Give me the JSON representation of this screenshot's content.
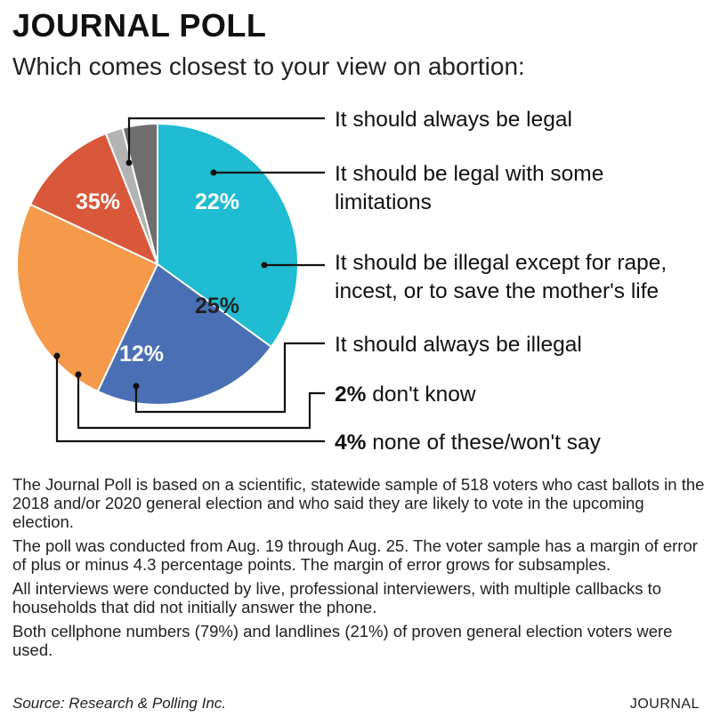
{
  "header": {
    "title": "JOURNAL POLL",
    "subtitle": "Which comes closest to your view on abortion:"
  },
  "chart_data": {
    "type": "pie",
    "title": "JOURNAL POLL",
    "subtitle": "Which comes closest to your view on abortion:",
    "slices": [
      {
        "label": "It should always be legal",
        "value": 35,
        "display": "35%",
        "color": "#1fbcd2"
      },
      {
        "label": "It should be legal with some limitations",
        "value": 22,
        "display": "22%",
        "color": "#4a6fb5"
      },
      {
        "label": "It should be illegal except for rape, incest, or to save the mother's life",
        "value": 25,
        "display": "25%",
        "color": "#f59a4a"
      },
      {
        "label": "It should always be illegal",
        "value": 12,
        "display": "12%",
        "color": "#d9573a"
      },
      {
        "label": "don't know",
        "value": 2,
        "display": "2%",
        "color": "#b3b3b3"
      },
      {
        "label": "none of these/won't say",
        "value": 4,
        "display": "4%",
        "color": "#6e6e6e"
      }
    ]
  },
  "legend": {
    "always_legal": "It should always be legal",
    "legal_limits_1": "It should be legal with some",
    "legal_limits_2": "limitations",
    "illegal_except_1": "It should be illegal except for rape,",
    "illegal_except_2": "incest, or to save the mother's life",
    "always_illegal": "It should always be illegal",
    "dont_know_pct": "2%",
    "dont_know_text": " don't know",
    "none_pct": "4%",
    "none_text": " none of these/won't say"
  },
  "notes": [
    "The Journal Poll is based on a scientific, statewide sample of 518 voters who cast ballots in the 2018 and/or 2020 general election and who said they are likely to vote in the upcoming election.",
    "The poll was conducted from Aug. 19 through Aug. 25. The voter sample has a margin of error of plus or minus 4.3 percentage points. The margin of error grows for subsamples.",
    "All interviews were conducted by live, professional interviewers, with multiple callbacks to households that did not initially answer the phone.",
    "Both cellphone numbers (79%) and landlines (21%) of proven general election voters were used."
  ],
  "footer": {
    "source": "Source: Research & Polling Inc.",
    "brand": "JOURNAL"
  }
}
